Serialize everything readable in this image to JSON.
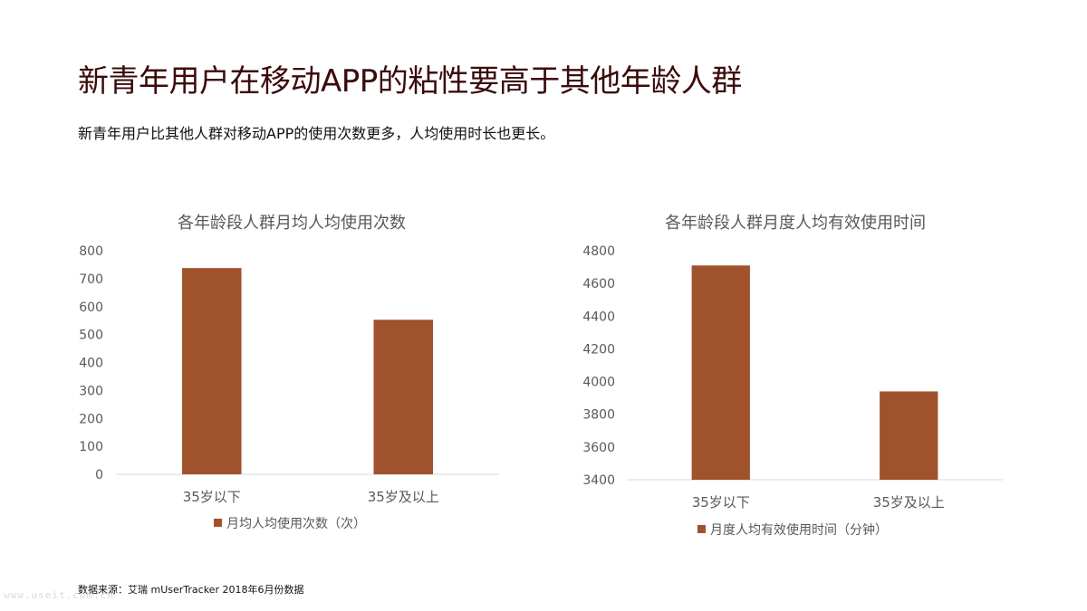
{
  "slide": {
    "title": "新青年用户在移动APP的粘性要高于其他年龄人群",
    "subtitle": "新青年用户比其他人群对移动APP的使用次数更多，人均使用时长也更长。",
    "source": "数据来源：艾瑞 mUserTracker 2018年6月份数据",
    "watermark": "www.useit.com.cn"
  },
  "colors": {
    "bar": "#a0522d",
    "axis_text": "#595959",
    "title": "#3b0b0b"
  },
  "chart_data": [
    {
      "type": "bar",
      "title": "各年龄段人群月均人均使用次数",
      "categories": [
        "35岁以下",
        "35岁及以上"
      ],
      "series": [
        {
          "name": "月均人均使用次数（次）",
          "values": [
            738,
            553
          ]
        }
      ],
      "ylim": [
        0,
        800
      ],
      "yticks": [
        0,
        100,
        200,
        300,
        400,
        500,
        600,
        700,
        800
      ],
      "grid": false,
      "legend": "bottom"
    },
    {
      "type": "bar",
      "title": "各年龄段人群月度人均有效使用时间",
      "categories": [
        "35岁以下",
        "35岁及以上"
      ],
      "series": [
        {
          "name": "月度人均有效使用时间（分钟）",
          "values": [
            4710,
            3940
          ]
        }
      ],
      "ylim": [
        3400,
        4800
      ],
      "yticks": [
        3400,
        3600,
        3800,
        4000,
        4200,
        4400,
        4600,
        4800
      ],
      "grid": false,
      "legend": "bottom"
    }
  ]
}
